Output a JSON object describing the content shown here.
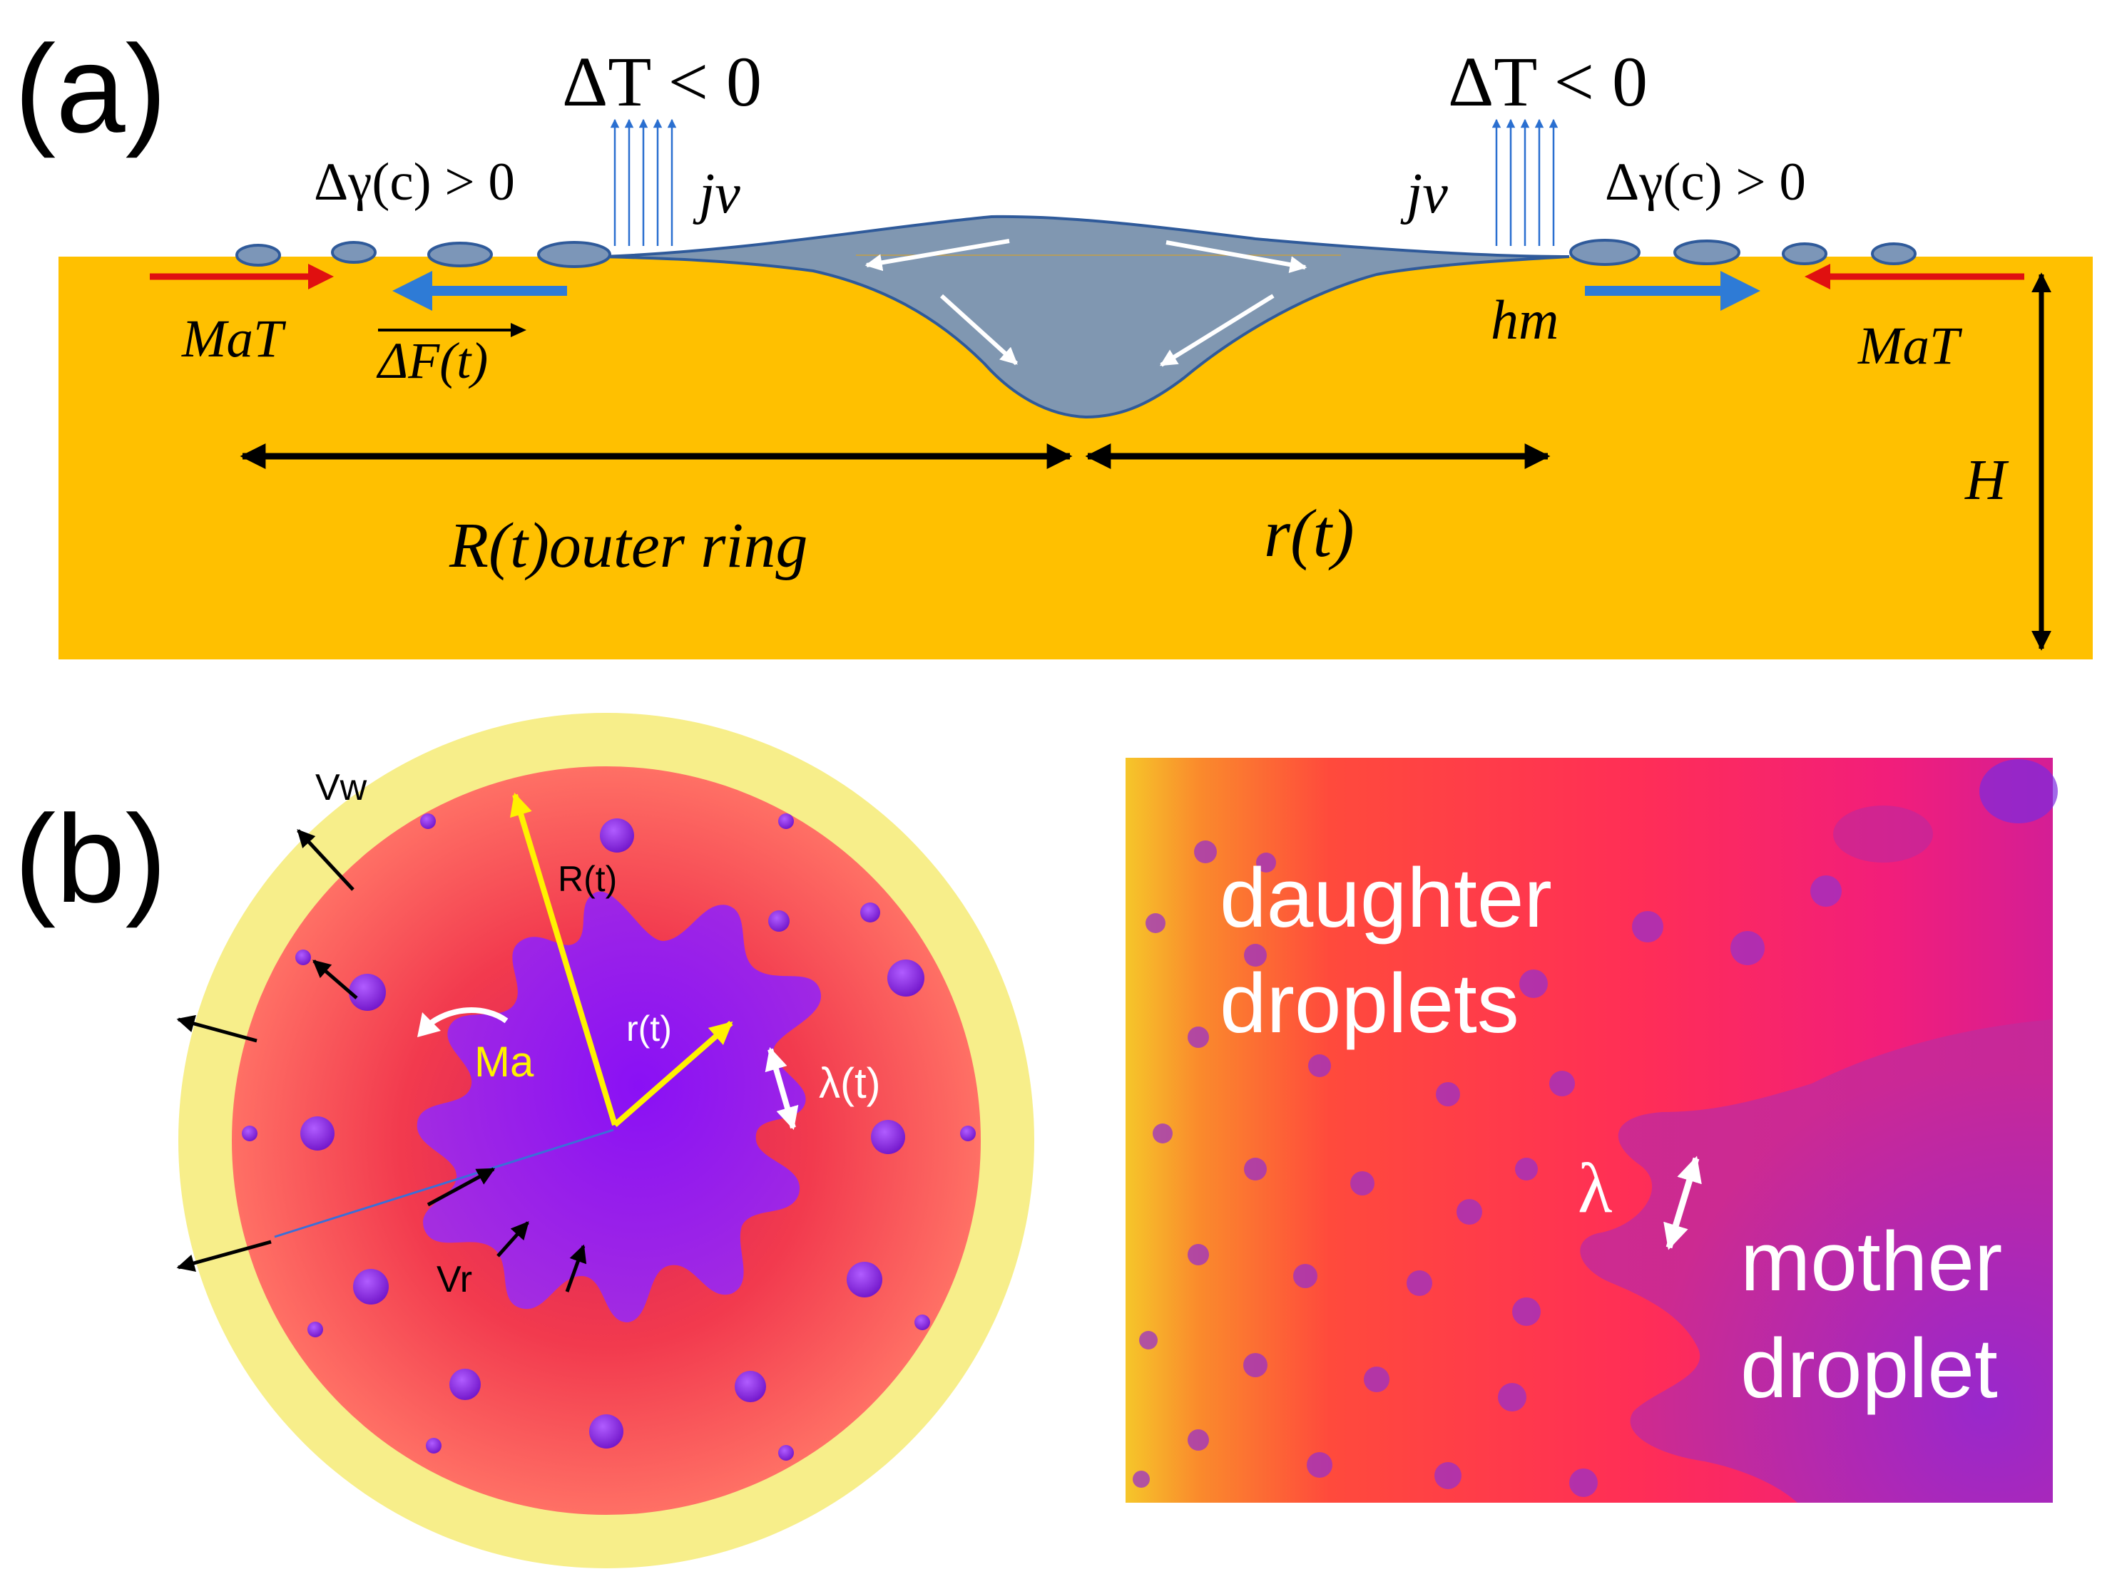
{
  "panel_a": {
    "label": "(a)",
    "delta_t_left": "ΔT < 0",
    "delta_t_right": "ΔT < 0",
    "delta_gamma_left": "Δγ(c) > 0",
    "delta_gamma_right": "Δγ(c) > 0",
    "jv_left": "jv",
    "jv_right": "jv",
    "ma_t_left": "MaT",
    "ma_t_right": "MaT",
    "delta_f": "ΔF(t)",
    "h_m": "hm",
    "outer_radius": "R(t)outer ring",
    "inner_radius": "r(t)",
    "height": "H"
  },
  "panel_b": {
    "label": "(b)",
    "v_w": "Vw",
    "v_r": "Vr",
    "outer_radius": "R(t)",
    "inner_radius": "r(t)",
    "ma": "Ma",
    "wavelength": "λ(t)"
  },
  "photo": {
    "daughter_line1": "daughter",
    "daughter_line2": "droplets",
    "mother_line1": "mother",
    "mother_line2": "droplet",
    "lambda": "λ"
  },
  "colors": {
    "film": "#FFC000",
    "drop": "#8097B1",
    "red_arrow": "#E01010",
    "blue_arrow": "#2E7BD6",
    "outer_ring": "#F7EE8A",
    "yellow_arrow": "#FFF200"
  }
}
